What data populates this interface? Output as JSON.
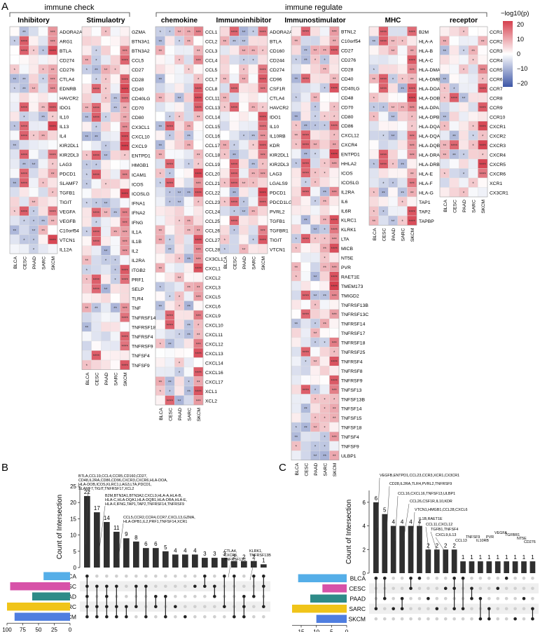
{
  "figure": {
    "panel_labels": [
      "A",
      "B",
      "C"
    ],
    "group_titles": {
      "immune_check": "immune check",
      "immune_regulate": "immune regulate"
    },
    "samples": [
      "BLCA",
      "CESC",
      "PAAD",
      "SARC",
      "SKCM"
    ],
    "legend": {
      "title": "−log10(p)",
      "ticks": [
        "20",
        "10",
        "0",
        "−10",
        "−20"
      ],
      "colors": {
        "pos": "#d6404e",
        "mid": "#ffffff",
        "neg": "#3d56a6"
      }
    },
    "heatmaps": [
      {
        "title": "Inhibitory",
        "genes": [
          "ADORA2A",
          "ARG1",
          "BTLA",
          "CD274",
          "CD276",
          "CTLA4",
          "EDNRB",
          "HAVCR2",
          "IDO1",
          "IL10",
          "IL13",
          "IL4",
          "KIR2DL1",
          "KIR2DL3",
          "LAG3",
          "PDCD1",
          "SLAMF7",
          "TGFB1",
          "TIGIT",
          "VEGFA",
          "VEGFB",
          "C10orf54",
          "VTCN1",
          "IL12A"
        ]
      },
      {
        "title": "Stimulaotry",
        "genes": [
          "GZMA",
          "BTN3A1",
          "BTN3A2",
          "CCL5",
          "CD27",
          "CD28",
          "CD40",
          "CD40LG",
          "CD70",
          "CD80",
          "CX3CL1",
          "CXCL10",
          "CXCL9",
          "ENTPD1",
          "HMGB1",
          "ICAM1",
          "ICOS",
          "ICOSLG",
          "IFNA1",
          "IFNA2",
          "IFNG",
          "IL1A",
          "IL1B",
          "IL2",
          "IL2RA",
          "ITGB2",
          "PRF1",
          "SELP",
          "TLR4",
          "TNF",
          "TNFRSF14",
          "TNFRSF18",
          "TNFRSF4",
          "TNFRSF9",
          "TNFSF4",
          "TNFSF9"
        ]
      },
      {
        "title": "chemokine",
        "genes": [
          "CCL1",
          "CCL2",
          "CCL3",
          "CCL4",
          "CCL5",
          "CCL7",
          "CCL8",
          "CCL11",
          "CCL13",
          "CCL14",
          "CCL15",
          "CCL16",
          "CCL17",
          "CCL18",
          "CCL19",
          "CCL20",
          "CCL21",
          "CCL22",
          "CCL23",
          "CCL24",
          "CCL25",
          "CCL26",
          "CCL27",
          "CCL28",
          "CX3CL1",
          "CXCL1",
          "CXCL2",
          "CXCL3",
          "CXCL5",
          "CXCL6",
          "CXCL9",
          "CXCL10",
          "CXCL11",
          "CXCL12",
          "CXCL13",
          "CXCL14",
          "CXCL16",
          "CXCL17",
          "XCL1",
          "XCL2"
        ]
      },
      {
        "title": "Immunoinhibitor",
        "genes": [
          "ADORA2A",
          "BTLA",
          "CD160",
          "CD244",
          "CD274",
          "CD96",
          "CSF1R",
          "CTLA4",
          "HAVCR2",
          "IDO1",
          "IL10",
          "IL10RB",
          "KDR",
          "KIR2DL1",
          "KIR2DL3",
          "LAG3",
          "LGALS9",
          "PDCD1",
          "PDCD1LG2",
          "PVRL2",
          "TGFB1",
          "TGFBR1",
          "TIGIT",
          "VTCN1"
        ]
      },
      {
        "title": "Immunostimulator",
        "genes": [
          "BTNL2",
          "C10orf54",
          "CD27",
          "CD276",
          "CD28",
          "CD40",
          "CD40LG",
          "CD48",
          "CD70",
          "CD80",
          "CD86",
          "CXCL12",
          "CXCR4",
          "ENTPD1",
          "HHLA2",
          "ICOS",
          "ICOSLG",
          "IL2RA",
          "IL6",
          "IL6R",
          "KLRC1",
          "KLRK1",
          "LTA",
          "MICB",
          "NT5E",
          "PVR",
          "RAET1E",
          "TMEM173",
          "TMIGD2",
          "TNFRSF13B",
          "TNFRSF13C",
          "TNFRSF14",
          "TNFRSF17",
          "TNFRSF18",
          "TNFRSF25",
          "TNFRSF4",
          "TNFRSF8",
          "TNFRSF9",
          "TNFSF13",
          "TNFSF13B",
          "TNFSF14",
          "TNFSF15",
          "TNFSF18",
          "TNFSF4",
          "TNFSF9",
          "ULBP1"
        ]
      },
      {
        "title": "MHC",
        "genes": [
          "B2M",
          "HLA-A",
          "HLA-B",
          "HLA-C",
          "HLA-DMA",
          "HLA-DMB",
          "HLA-DOA",
          "HLA-DOB",
          "HLA-DPA1",
          "HLA-DPB1",
          "HLA-DQA1",
          "HLA-DQA2",
          "HLA-DQB1",
          "HLA-DRA",
          "HLA-DRB1",
          "HLA-E",
          "HLA-F",
          "HLA-G",
          "TAP1",
          "TAP2",
          "TAPBP"
        ]
      },
      {
        "title": "receptor",
        "genes": [
          "CCR1",
          "CCR2",
          "CCR3",
          "CCR4",
          "CCR5",
          "CCR6",
          "CCR7",
          "CCR8",
          "CCR9",
          "CCR10",
          "CXCR1",
          "CXCR2",
          "CXCR3",
          "CXCR4",
          "CXCR5",
          "CXCR6",
          "XCR1",
          "CX3CR1"
        ]
      }
    ],
    "upset_b": {
      "y_label": "Count of Intersection",
      "y_ticks": [
        "0",
        "5",
        "10",
        "15",
        "20",
        "25"
      ],
      "bars": [
        22,
        17,
        14,
        11,
        9,
        8,
        6,
        6,
        5,
        4,
        4,
        4,
        3,
        3,
        3,
        2,
        2,
        2,
        1
      ],
      "sets": [
        "BLCA",
        "CESC",
        "PAAD",
        "SARC",
        "SKCM"
      ],
      "set_sizes": [
        42,
        95,
        60,
        100,
        88
      ],
      "set_colors": [
        "#55aee8",
        "#d752a8",
        "#2e8b88",
        "#f0c419",
        "#4f7ee0"
      ],
      "size_label": "Datasets Size",
      "size_ticks": [
        "100",
        "75",
        "50",
        "25",
        "0"
      ],
      "annotations": [
        "BTLA,CCL19,CCL4,CCR5,CD160,CD27,",
        "CD48,IL2RA,CD86,CD96,CXCR3,CXCR6,HLA-DOA,",
        "HLA-DOB,ICOS,KLRC1,LAG3,LTA,PDCD1,",
        "SLAMF7,TIGIT,TNFRSF17,XCL2",
        "B2M,BTN3A1,BTN3A2,CXCL9,HLA-A,HLA-B,",
        "HLA-C,HLA-DQA1,HLA-DQB1,HLA-DRA,HLA-E,",
        "HLA-F,IFNG,TAP1,TAP2,TNFRSF14,TNFRSF9",
        "CCL5,CCR2,CCR4,CCR7,CXCL13,GZMA,",
        "HLA-DPB1,IL2,PRF1,TNFSF14,XCR1",
        "CTLA4,",
        "CXCR5,",
        "TNFRSF13C",
        "KLRK1,",
        "TNFRSF13B"
      ]
    },
    "upset_c": {
      "y_label": "Count of Intersection",
      "y_ticks": [
        "0",
        "2",
        "4",
        "6"
      ],
      "bars": [
        6,
        5,
        4,
        4,
        4,
        4,
        2,
        2,
        2,
        2,
        1,
        1,
        1,
        1,
        1,
        1,
        1,
        1,
        1
      ],
      "sets": [
        "BLCA",
        "CESC",
        "PAAD",
        "SARC",
        "SKCM"
      ],
      "set_sizes": [
        16,
        8,
        12,
        18,
        10
      ],
      "set_colors": [
        "#55aee8",
        "#d752a8",
        "#2e8b88",
        "#f0c419",
        "#4f7ee0"
      ],
      "size_label": "Datasets Size",
      "size_ticks": [
        "15",
        "10",
        "5",
        "0"
      ],
      "annotations": [
        "VEGFB,ENTPD1,CCL23,CCR3,XCR1,CX3CR1",
        "CD28,IL2RA,TLR4,PVRL2,TNFRSF9",
        "CCL16,CXCL16,TNFSF13,ULBP1",
        "CCL26,CSF1R,IL10,KDR",
        "VTCN1,HMGB1,CCL28,CXCL6",
        "IL1B,RAET1E",
        "CCL11,CXCL12",
        "TGFB1,TNFSF4",
        "CXCL9,IL13",
        "CCL13",
        "TNFSF9",
        "IL10RB",
        "PVR",
        "VEGFA",
        "TGFBR1",
        "NT5E",
        "CD276"
      ]
    }
  }
}
